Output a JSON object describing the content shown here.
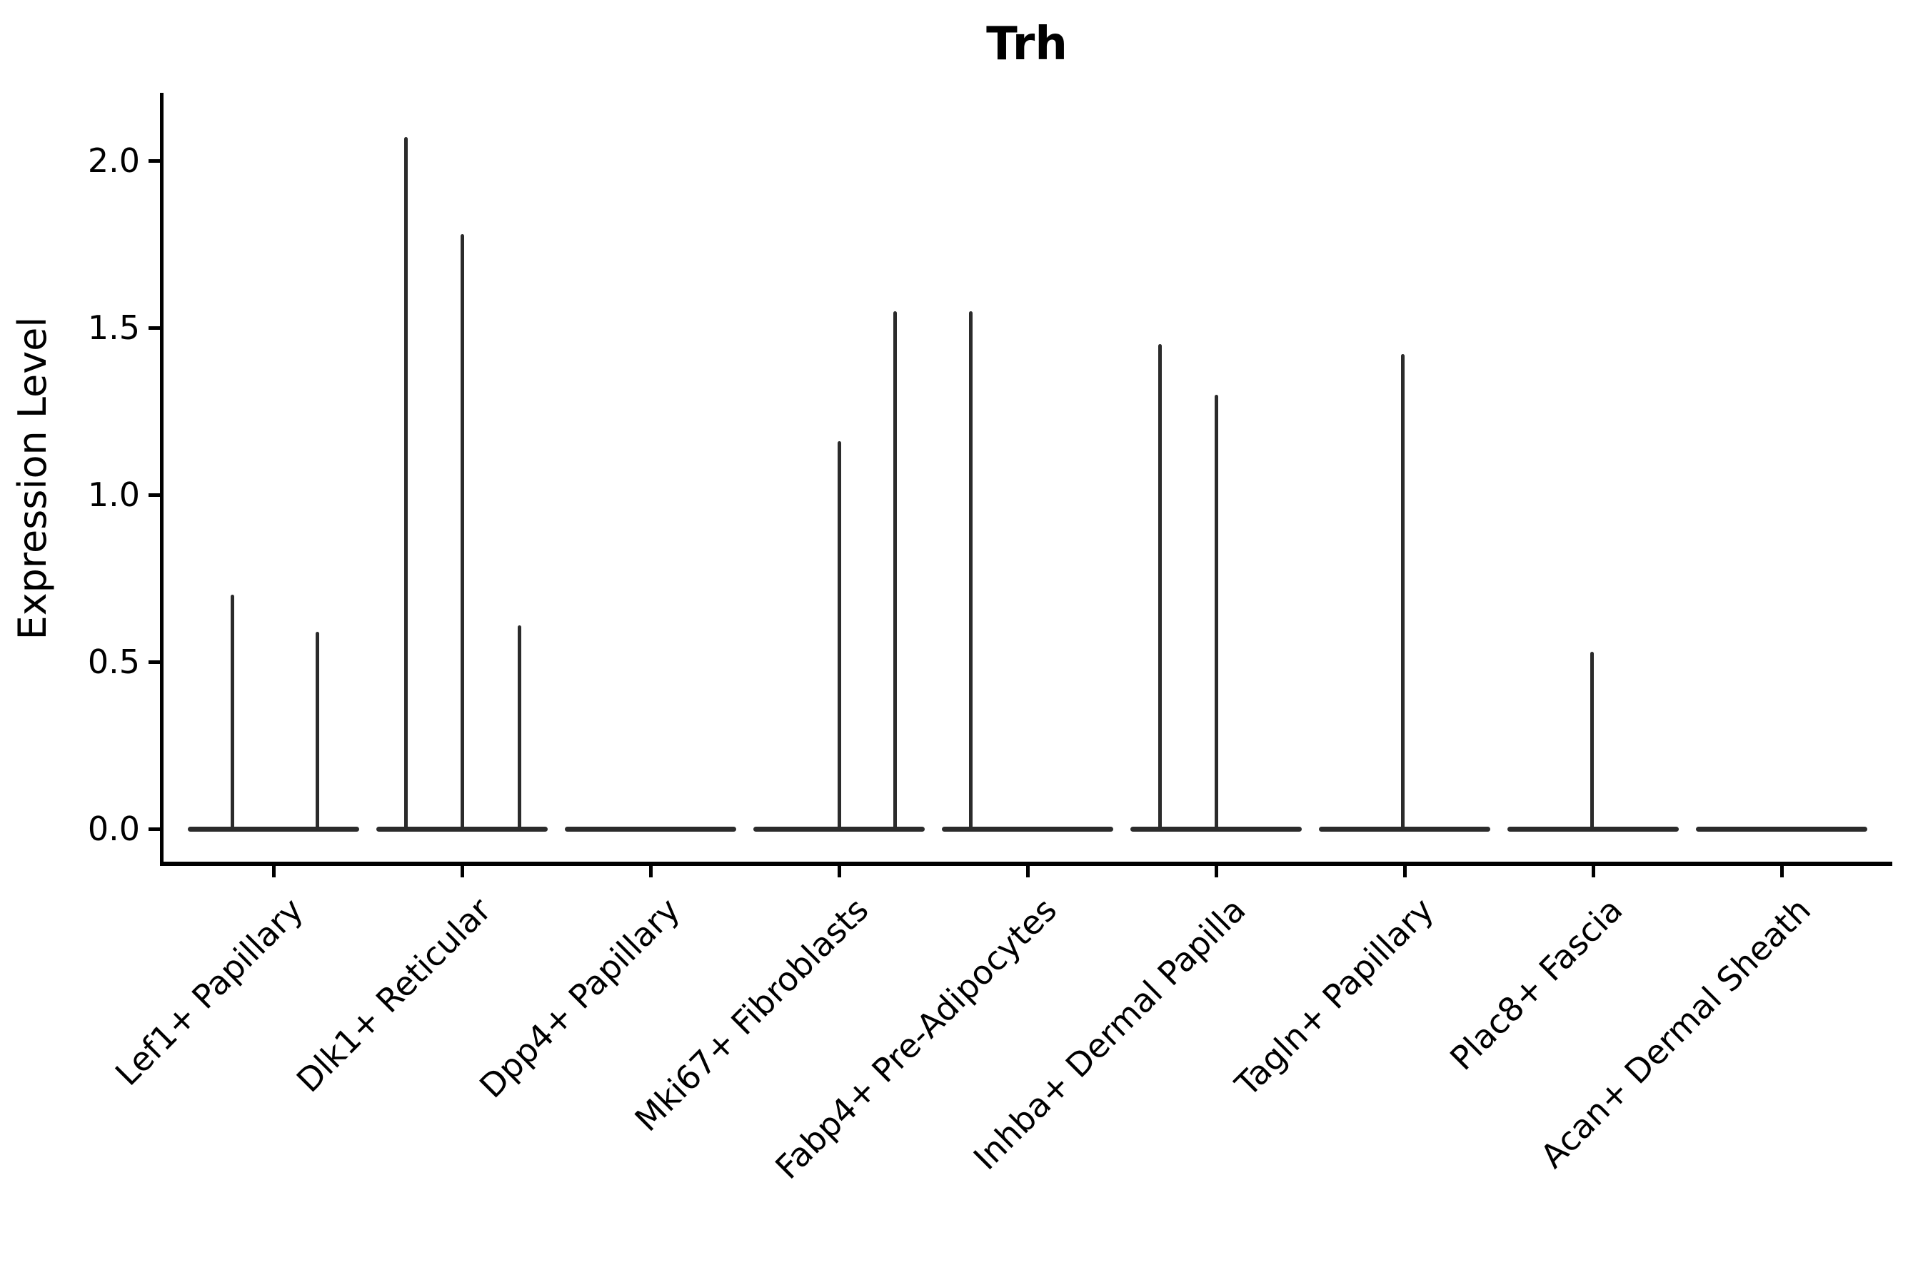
{
  "title": "Trh",
  "y_axis": {
    "label": "Expression Level",
    "tick_labels": [
      "0.0",
      "0.5",
      "1.0",
      "1.5",
      "2.0"
    ]
  },
  "chart_data": {
    "type": "violin",
    "title": "Trh",
    "xlabel": "",
    "ylabel": "Expression Level",
    "ylim": [
      -0.1,
      2.2
    ],
    "y_ticks": [
      0.0,
      0.5,
      1.0,
      1.5,
      2.0
    ],
    "grid": false,
    "legend": false,
    "line_color": "#2b2b2b",
    "baseline_value": 0.0,
    "categories": [
      "Lef1+ Papillary",
      "Dlk1+ Reticular",
      "Dpp4+ Papillary",
      "Mki67+ Fibroblasts",
      "Fabp4+ Pre-Adipocytes",
      "Inhba+ Dermal Papilla",
      "Tagln+ Papillary",
      "Plac8+ Fascia",
      "Acan+ Dermal Sheath"
    ],
    "series": [
      {
        "name": "Lef1+ Papillary",
        "spikes": [
          {
            "dx": -58,
            "value": 0.7
          },
          {
            "dx": 61,
            "value": 0.59
          }
        ]
      },
      {
        "name": "Dlk1+ Reticular",
        "spikes": [
          {
            "dx": -79,
            "value": 2.07
          },
          {
            "dx": 0,
            "value": 1.78
          },
          {
            "dx": 80,
            "value": 0.61
          }
        ]
      },
      {
        "name": "Dpp4+ Papillary",
        "spikes": []
      },
      {
        "name": "Mki67+ Fibroblasts",
        "spikes": [
          {
            "dx": 0,
            "value": 1.16
          },
          {
            "dx": 78,
            "value": 1.55
          }
        ]
      },
      {
        "name": "Fabp4+ Pre-Adipocytes",
        "spikes": [
          {
            "dx": -80,
            "value": 1.55
          }
        ]
      },
      {
        "name": "Inhba+ Dermal Papilla",
        "spikes": [
          {
            "dx": -79,
            "value": 1.45
          },
          {
            "dx": 0,
            "value": 1.3
          }
        ]
      },
      {
        "name": "Tagln+ Papillary",
        "spikes": [
          {
            "dx": -3,
            "value": 1.42
          }
        ]
      },
      {
        "name": "Plac8+ Fascia",
        "spikes": [
          {
            "dx": -2,
            "value": 0.53
          }
        ]
      },
      {
        "name": "Acan+ Dermal Sheath",
        "spikes": []
      }
    ]
  }
}
